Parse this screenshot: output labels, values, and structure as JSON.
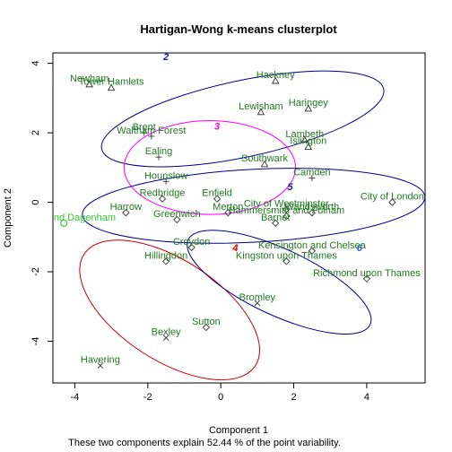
{
  "chart_data": {
    "type": "scatter",
    "title": "Hartigan-Wong k-means clusterplot",
    "xlabel": "Component 1",
    "ylabel": "Component 2",
    "subtitle": "These two components explain 52.44 % of the point variability.",
    "xlim": [
      -4.6,
      5.6
    ],
    "ylim": [
      -5.2,
      4.3
    ],
    "xticks": [
      -4,
      -2,
      0,
      2,
      4
    ],
    "yticks": [
      -4,
      -2,
      0,
      2,
      4
    ],
    "colors": {
      "point_label": "#1f7a1f",
      "ellipse_blue": "#00008b",
      "ellipse_magenta": "#ff00ff",
      "ellipse_red": "#cc0000",
      "cluster_label_blue": "#1a1aa6",
      "cluster_label_magenta": "#ff00ff",
      "cluster_label_red": "#dd0000",
      "cluster_label_cyan": "#1e5aff",
      "outlier": "#33cc33",
      "point_mark": "#333333"
    },
    "clusters": [
      {
        "id": "2",
        "label": "2",
        "center": [
          0.6,
          2.4
        ],
        "rx": 3.95,
        "ry": 1.1,
        "angle": -12,
        "color": "ellipse_blue",
        "label_color": "cluster_label_blue",
        "label_pos": [
          -1.5,
          4.2
        ]
      },
      {
        "id": "3",
        "label": "3",
        "center": [
          -0.3,
          1.0
        ],
        "rx": 2.35,
        "ry": 1.35,
        "angle": 0,
        "color": "ellipse_magenta",
        "label_color": "cluster_label_magenta",
        "label_pos": [
          -0.1,
          2.2
        ]
      },
      {
        "id": "5",
        "label": "5",
        "center": [
          0.9,
          -0.1
        ],
        "rx": 4.7,
        "ry": 1.05,
        "angle": -3,
        "color": "ellipse_blue",
        "label_color": "cluster_label_blue",
        "label_pos": [
          1.9,
          0.45
        ]
      },
      {
        "id": "4",
        "label": "4",
        "center": [
          -1.4,
          -3.1
        ],
        "rx": 2.8,
        "ry": 1.45,
        "angle": 33,
        "color": "ellipse_red",
        "label_color": "cluster_label_red",
        "label_pos": [
          0.4,
          -1.3
        ]
      },
      {
        "id": "6",
        "label": "6",
        "center": [
          1.6,
          -2.3
        ],
        "rx": 2.75,
        "ry": 0.95,
        "angle": 25,
        "color": "ellipse_blue",
        "label_color": "cluster_label_cyan",
        "label_pos": [
          3.8,
          -1.3
        ]
      }
    ],
    "points": [
      {
        "name": "Newham",
        "x": -3.6,
        "y": 3.4,
        "marker": "triangle"
      },
      {
        "name": "Tower Hamlets",
        "x": -3.0,
        "y": 3.3,
        "marker": "triangle"
      },
      {
        "name": "Hackney",
        "x": 1.5,
        "y": 3.5,
        "marker": "triangle"
      },
      {
        "name": "Lewisham",
        "x": 1.1,
        "y": 2.6,
        "marker": "triangle"
      },
      {
        "name": "Haringey",
        "x": 2.4,
        "y": 2.7,
        "marker": "triangle"
      },
      {
        "name": "Islington",
        "x": 2.4,
        "y": 1.6,
        "marker": "triangle"
      },
      {
        "name": "Lambeth",
        "x": 2.3,
        "y": 1.8,
        "marker": "triangle"
      },
      {
        "name": "Southwark",
        "x": 1.2,
        "y": 1.1,
        "marker": "triangle"
      },
      {
        "name": "Brent",
        "x": -2.1,
        "y": 2.0,
        "marker": "plus"
      },
      {
        "name": "Waltham Forest",
        "x": -1.9,
        "y": 1.9,
        "marker": "plus"
      },
      {
        "name": "Ealing",
        "x": -1.7,
        "y": 1.3,
        "marker": "plus"
      },
      {
        "name": "Hounslow",
        "x": -1.5,
        "y": 0.6,
        "marker": "plus"
      },
      {
        "name": "Camden",
        "x": 2.5,
        "y": 0.7,
        "marker": "plus"
      },
      {
        "name": "Redbridge",
        "x": -1.6,
        "y": 0.1,
        "marker": "diamond"
      },
      {
        "name": "Enfield",
        "x": -0.1,
        "y": 0.1,
        "marker": "diamond"
      },
      {
        "name": "City of Westminster",
        "x": 1.8,
        "y": -0.2,
        "marker": "diamond"
      },
      {
        "name": "City of London",
        "x": 4.7,
        "y": 0.0,
        "marker": "diamond"
      },
      {
        "name": "Harrow",
        "x": -2.6,
        "y": -0.3,
        "marker": "diamond"
      },
      {
        "name": "Merton",
        "x": 0.2,
        "y": -0.3,
        "marker": "diamond"
      },
      {
        "name": "Greenwich",
        "x": -1.2,
        "y": -0.5,
        "marker": "diamond"
      },
      {
        "name": "Hammersmith and Fulham",
        "x": 1.8,
        "y": -0.4,
        "marker": "diamond"
      },
      {
        "name": "Wandsworth",
        "x": 2.5,
        "y": -0.3,
        "marker": "diamond"
      },
      {
        "name": "Barnet",
        "x": 1.5,
        "y": -0.6,
        "marker": "diamond"
      },
      {
        "name": "Barking and Dagenham",
        "x": -4.3,
        "y": -0.6,
        "marker": "circle"
      },
      {
        "name": "Croydon",
        "x": -0.8,
        "y": -1.3,
        "marker": "diamond"
      },
      {
        "name": "Kensington and Chelsea",
        "x": 2.5,
        "y": -1.4,
        "marker": "diamond"
      },
      {
        "name": "Kingston upon Thames",
        "x": 1.8,
        "y": -1.7,
        "marker": "diamond"
      },
      {
        "name": "Hillingdon",
        "x": -1.5,
        "y": -1.7,
        "marker": "diamond"
      },
      {
        "name": "Richmond upon Thames",
        "x": 4.0,
        "y": -2.2,
        "marker": "diamond"
      },
      {
        "name": "Bromley",
        "x": 1.0,
        "y": -2.9,
        "marker": "cross"
      },
      {
        "name": "Sutton",
        "x": -0.4,
        "y": -3.6,
        "marker": "diamond"
      },
      {
        "name": "Bexley",
        "x": -1.5,
        "y": -3.9,
        "marker": "cross"
      },
      {
        "name": "Havering",
        "x": -3.3,
        "y": -4.7,
        "marker": "cross"
      }
    ]
  }
}
